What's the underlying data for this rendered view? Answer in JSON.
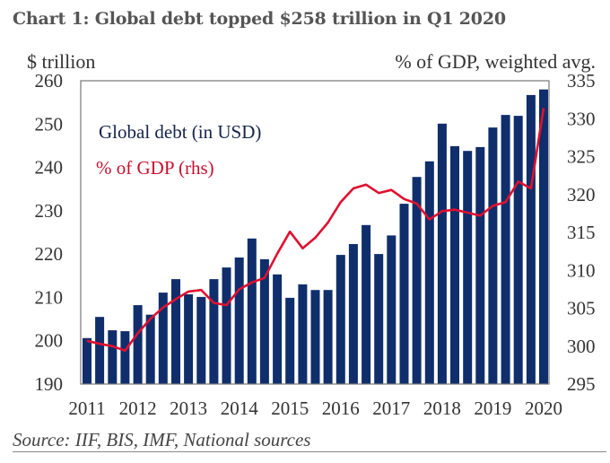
{
  "chart_data": {
    "type": "bar+line",
    "title": "Chart 1: Global debt topped $258 trillion in Q1 2020",
    "ylabel_left": "$ trillion",
    "ylabel_right": "% of GDP, weighted avg.",
    "source": "Source: IIF, BIS, IMF, National sources",
    "ylim_left": [
      190,
      260
    ],
    "ylim_right": [
      295,
      335
    ],
    "yticks_left": [
      "190",
      "200",
      "210",
      "220",
      "230",
      "240",
      "250",
      "260"
    ],
    "yticks_right": [
      "295",
      "300",
      "305",
      "310",
      "315",
      "320",
      "325",
      "330",
      "335"
    ],
    "x_tick_labels": [
      "2011",
      "2012",
      "2013",
      "2014",
      "2015",
      "2016",
      "2017",
      "2018",
      "2019",
      "2020"
    ],
    "x": [
      "2011Q1",
      "2011Q2",
      "2011Q3",
      "2011Q4",
      "2012Q1",
      "2012Q2",
      "2012Q3",
      "2012Q4",
      "2013Q1",
      "2013Q2",
      "2013Q3",
      "2013Q4",
      "2014Q1",
      "2014Q2",
      "2014Q3",
      "2014Q4",
      "2015Q1",
      "2015Q2",
      "2015Q3",
      "2015Q4",
      "2016Q1",
      "2016Q2",
      "2016Q3",
      "2016Q4",
      "2017Q1",
      "2017Q2",
      "2017Q3",
      "2017Q4",
      "2018Q1",
      "2018Q2",
      "2018Q3",
      "2018Q4",
      "2019Q1",
      "2019Q2",
      "2019Q3",
      "2019Q4",
      "2020Q1"
    ],
    "series": [
      {
        "name": "Global debt (in USD)",
        "type": "bar",
        "axis": "left",
        "color": "#0f2e6b",
        "values": [
          200.6,
          205.5,
          202.4,
          202.2,
          208.2,
          206.0,
          211.1,
          214.2,
          210.7,
          210.1,
          214.2,
          216.9,
          219.2,
          223.6,
          218.8,
          215.3,
          209.9,
          213.0,
          211.7,
          211.7,
          219.8,
          222.3,
          226.7,
          220.0,
          224.3,
          231.6,
          237.8,
          241.4,
          250.1,
          244.9,
          243.8,
          244.7,
          249.2,
          252.1,
          251.9,
          256.7,
          258.0
        ]
      },
      {
        "name": "% of GDP (rhs)",
        "type": "line",
        "axis": "right",
        "color": "#e0102f",
        "values": [
          300.7,
          300.3,
          300.0,
          299.4,
          301.7,
          303.6,
          305.1,
          306.2,
          307.2,
          307.4,
          305.7,
          305.4,
          307.5,
          308.4,
          309.0,
          312.2,
          315.1,
          312.9,
          314.3,
          316.3,
          319.0,
          320.8,
          321.3,
          320.2,
          320.6,
          319.4,
          318.8,
          316.7,
          317.8,
          318.0,
          317.6,
          317.2,
          318.5,
          319.0,
          321.7,
          320.8,
          331.4
        ]
      }
    ],
    "legend": "top-left, inside plot",
    "grid": false
  }
}
